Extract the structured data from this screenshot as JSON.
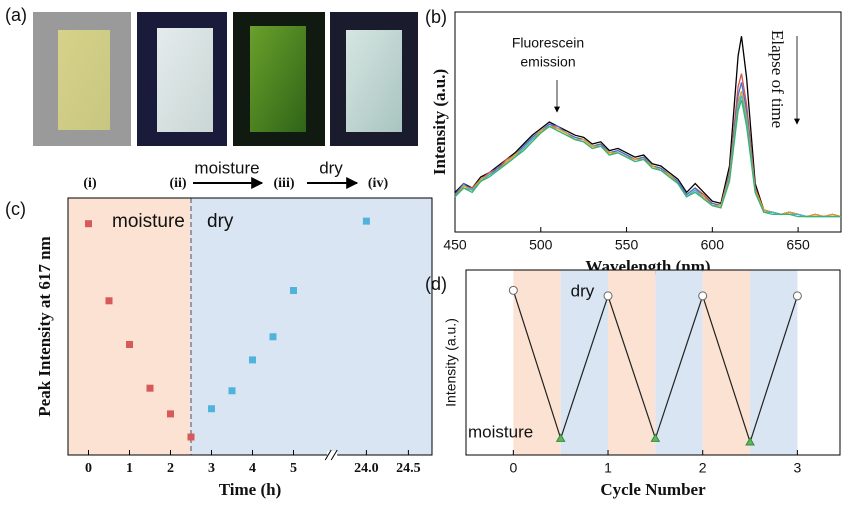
{
  "panel_a": {
    "label": "(a)",
    "samples": [
      "(i)",
      "(ii)",
      "(iii)",
      "(iv)"
    ],
    "steps": [
      "moisture",
      "dry"
    ]
  },
  "chart_data": [
    {
      "type": "line",
      "panel": "(b)",
      "annotation": [
        "Fluorescein",
        "emission"
      ],
      "arrow_label": "Elapse of time",
      "x_label": "Wavelength (nm)",
      "y_label": "Intensity (a.u.)",
      "xlim": [
        450,
        675
      ],
      "xticks": [
        450,
        500,
        550,
        600,
        650
      ],
      "ylim": [
        0,
        100
      ],
      "x": [
        450,
        455,
        460,
        465,
        470,
        475,
        480,
        485,
        490,
        495,
        500,
        505,
        510,
        515,
        520,
        525,
        530,
        535,
        540,
        545,
        550,
        555,
        560,
        565,
        570,
        575,
        580,
        585,
        590,
        595,
        600,
        605,
        610,
        615,
        617,
        620,
        625,
        630,
        635,
        640,
        645,
        650,
        655,
        660,
        665,
        670,
        675
      ],
      "series": [
        {
          "color": "#000000",
          "values": [
            18,
            22,
            20,
            25,
            27,
            30,
            33,
            36,
            40,
            44,
            47,
            50,
            48,
            46,
            44,
            43,
            40,
            41,
            37,
            38,
            36,
            34,
            35,
            31,
            30,
            27,
            24,
            18,
            22,
            18,
            14,
            13,
            30,
            80,
            89,
            70,
            22,
            10,
            9,
            8,
            9,
            8,
            7,
            8,
            7,
            8,
            7
          ]
        },
        {
          "color": "#d9534f",
          "values": [
            17,
            21,
            20,
            24,
            27,
            29,
            33,
            35,
            39,
            43,
            46,
            49,
            47,
            45,
            43,
            42,
            39,
            40,
            36,
            37,
            35,
            33,
            34,
            30,
            29,
            26,
            23,
            17,
            20,
            17,
            13,
            12,
            27,
            66,
            72,
            58,
            20,
            10,
            9,
            8,
            9,
            8,
            7,
            8,
            7,
            8,
            7
          ]
        },
        {
          "color": "#4a6fd1",
          "values": [
            17,
            22,
            19,
            24,
            26,
            29,
            32,
            35,
            39,
            43,
            46,
            49,
            48,
            45,
            43,
            42,
            39,
            40,
            36,
            37,
            35,
            33,
            34,
            30,
            29,
            26,
            23,
            17,
            20,
            16,
            13,
            12,
            26,
            62,
            68,
            55,
            19,
            9,
            9,
            8,
            9,
            8,
            7,
            8,
            7,
            8,
            7
          ]
        },
        {
          "color": "#e0a020",
          "values": [
            16,
            21,
            19,
            24,
            26,
            28,
            32,
            35,
            38,
            42,
            46,
            48,
            47,
            45,
            42,
            42,
            39,
            39,
            36,
            36,
            34,
            33,
            33,
            30,
            28,
            26,
            22,
            16,
            19,
            16,
            12,
            12,
            25,
            59,
            64,
            52,
            19,
            10,
            9,
            8,
            9,
            8,
            7,
            8,
            7,
            8,
            7
          ]
        },
        {
          "color": "#40b8d0",
          "values": [
            16,
            20,
            19,
            23,
            26,
            28,
            31,
            34,
            38,
            42,
            45,
            48,
            46,
            44,
            42,
            41,
            38,
            39,
            35,
            36,
            34,
            32,
            33,
            29,
            28,
            25,
            22,
            16,
            19,
            15,
            12,
            11,
            24,
            57,
            62,
            50,
            18,
            9,
            9,
            8,
            8,
            8,
            7,
            7,
            7,
            7,
            7
          ]
        },
        {
          "color": "#3cb371",
          "values": [
            16,
            20,
            18,
            23,
            25,
            28,
            31,
            34,
            37,
            41,
            45,
            48,
            46,
            44,
            42,
            41,
            38,
            39,
            35,
            36,
            34,
            32,
            33,
            29,
            28,
            25,
            22,
            16,
            18,
            15,
            12,
            11,
            23,
            55,
            60,
            48,
            18,
            9,
            8,
            8,
            8,
            7,
            7,
            7,
            7,
            7,
            7
          ]
        }
      ]
    },
    {
      "type": "scatter",
      "panel": "(c)",
      "x_label": "Time (h)",
      "y_label": "Peak Intensity at 617 nm",
      "xlim": [
        -0.5,
        24.75
      ],
      "axis_break": [
        5.7,
        23.7
      ],
      "xticks": [
        0,
        1,
        2,
        3,
        4,
        5,
        {
          "value": 24,
          "label": "24.0"
        },
        {
          "value": 24.5,
          "label": "24.5"
        }
      ],
      "ylim": [
        0,
        100
      ],
      "divider": 2.5,
      "region_colors": [
        "#fbe2d2",
        "#d9e5f3"
      ],
      "series": [
        {
          "name": "moisture",
          "color": "#d65a5a",
          "x": [
            0,
            0.5,
            1,
            1.5,
            2,
            2.5
          ],
          "values": [
            90,
            60,
            43,
            26,
            16,
            7
          ]
        },
        {
          "name": "dry",
          "color": "#4fb3dc",
          "x": [
            3,
            3.5,
            4,
            4.5,
            5,
            24
          ],
          "values": [
            18,
            25,
            37,
            46,
            64,
            91
          ]
        }
      ]
    },
    {
      "type": "line",
      "panel": "(d)",
      "x_label": "Cycle Number",
      "y_label": "Intensity (a.u.)",
      "xlim": [
        -0.5,
        3.45
      ],
      "xticks": [
        0,
        1,
        2,
        3
      ],
      "ylim": [
        0,
        100
      ],
      "region_labels": [
        "moisture",
        "dry"
      ],
      "region_colors": [
        "#fbe2d2",
        "#d9e5f3"
      ],
      "x": [
        0,
        0.5,
        1,
        1.5,
        2,
        2.5,
        3
      ],
      "series": [
        {
          "color": "#222222",
          "values": [
            89,
            9,
            86,
            9,
            86,
            7,
            86
          ]
        }
      ]
    }
  ]
}
